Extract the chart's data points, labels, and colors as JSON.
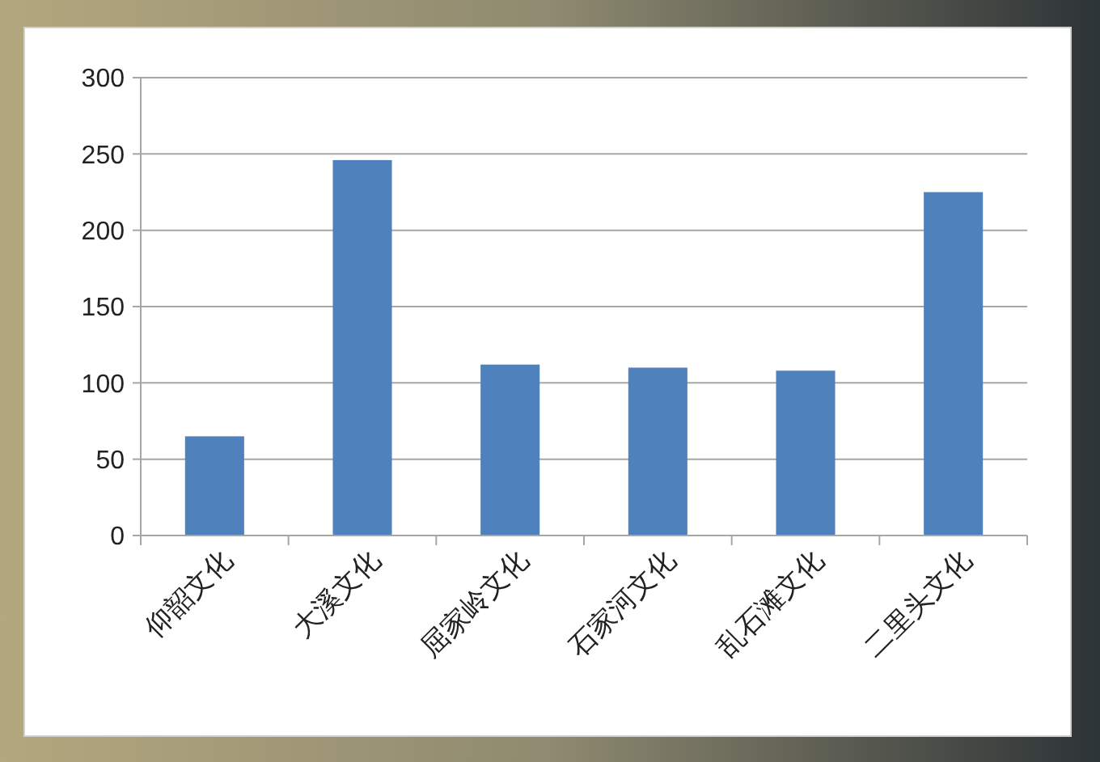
{
  "chart_data": {
    "type": "bar",
    "categories": [
      "仰韶文化",
      "大溪文化",
      "屈家岭文化",
      "石家河文化",
      "乱石滩文化",
      "二里头文化"
    ],
    "values": [
      65,
      246,
      112,
      110,
      108,
      225
    ],
    "color": "#4f81bd",
    "ylim": [
      0,
      300
    ],
    "yticks": [
      0,
      50,
      100,
      150,
      200,
      250,
      300
    ],
    "grid": "y"
  }
}
